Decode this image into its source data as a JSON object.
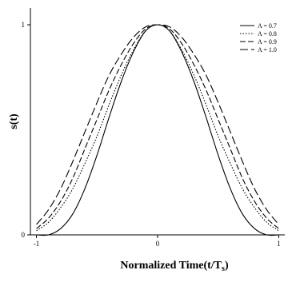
{
  "chart_data": {
    "type": "line",
    "title": "",
    "xlabel": "Normalized Time(t/T",
    "xlabel_sub": "s",
    "xlabel_end": ")",
    "ylabel": "s(t)",
    "xlim": [
      -1.05,
      1.05
    ],
    "ylim": [
      0,
      1.08
    ],
    "x_ticks": [
      {
        "value": -1,
        "label": "-1"
      },
      {
        "value": 0,
        "label": "0"
      },
      {
        "value": 1,
        "label": "1"
      }
    ],
    "y_ticks": [
      {
        "value": 0,
        "label": "0"
      },
      {
        "value": 1,
        "label": "1"
      }
    ],
    "grid": false,
    "legend_position": "top-right",
    "x": [
      -1,
      -0.9,
      -0.8,
      -0.7,
      -0.6,
      -0.5,
      -0.4,
      -0.3,
      -0.2,
      -0.1,
      0,
      0.1,
      0.2,
      0.3,
      0.4,
      0.5,
      0.6,
      0.7,
      0.8,
      0.9,
      1
    ],
    "series": [
      {
        "name": "A = 0.7",
        "dash": "",
        "values": [
          0.0,
          0.0,
          0.03,
          0.1,
          0.22,
          0.38,
          0.56,
          0.73,
          0.87,
          0.97,
          1.0,
          0.97,
          0.87,
          0.73,
          0.56,
          0.38,
          0.22,
          0.1,
          0.03,
          0.0,
          0.0
        ]
      },
      {
        "name": "A = 0.8",
        "dash": "1.5,2",
        "values": [
          0.02,
          0.06,
          0.13,
          0.22,
          0.34,
          0.47,
          0.62,
          0.76,
          0.88,
          0.97,
          1.0,
          0.97,
          0.88,
          0.76,
          0.62,
          0.47,
          0.34,
          0.22,
          0.13,
          0.06,
          0.02
        ]
      },
      {
        "name": "A = 0.9",
        "dash": "7,3",
        "values": [
          0.03,
          0.08,
          0.16,
          0.27,
          0.41,
          0.55,
          0.69,
          0.81,
          0.91,
          0.98,
          1.0,
          0.98,
          0.91,
          0.81,
          0.69,
          0.55,
          0.41,
          0.27,
          0.16,
          0.08,
          0.03
        ]
      },
      {
        "name": "A = 1.0",
        "dash": "10,4",
        "values": [
          0.05,
          0.12,
          0.22,
          0.35,
          0.49,
          0.63,
          0.76,
          0.86,
          0.94,
          0.99,
          1.0,
          0.99,
          0.94,
          0.86,
          0.76,
          0.63,
          0.49,
          0.35,
          0.22,
          0.12,
          0.05
        ]
      }
    ]
  }
}
